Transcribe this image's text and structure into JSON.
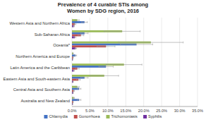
{
  "chart_data": {
    "type": "bar",
    "orientation": "horizontal",
    "title": "Prevalence of 4 curable STIs among\nWomen by SDG region, 2016",
    "categories": [
      "Western Asia and Northern Africa",
      "Sub-Saharan Africa",
      "Oceania*",
      "Northern America and Europe",
      "Latin America and the Caribbean",
      "Eastern Asia and South-eastern Asia",
      "Central Asia and Southern Asia",
      "Australia and New Zealand"
    ],
    "series": [
      {
        "name": "Chlamydia",
        "color": "#4472C4",
        "values": [
          3.5,
          3.5,
          18.0,
          1.0,
          9.5,
          3.5,
          2.0,
          2.0
        ],
        "errors": [
          0.8,
          1.0,
          4.5,
          0.3,
          2.0,
          1.0,
          0.5,
          0.5
        ]
      },
      {
        "name": "Gonorrhoea",
        "color": "#C0504D",
        "values": [
          0.8,
          2.5,
          9.5,
          0.3,
          1.5,
          1.8,
          0.5,
          0.3
        ],
        "errors": [
          0.3,
          0.8,
          2.5,
          0.1,
          0.5,
          0.5,
          0.2,
          0.1
        ]
      },
      {
        "name": "Trichomoniasis",
        "color": "#9BBB59",
        "values": [
          1.5,
          14.0,
          22.0,
          0.3,
          14.5,
          9.0,
          1.5,
          0.5
        ],
        "errors": [
          0.5,
          5.0,
          9.0,
          0.1,
          5.0,
          4.0,
          0.5,
          0.2
        ]
      },
      {
        "name": "Syphilis",
        "color": "#7030A0",
        "values": [
          0.5,
          0.8,
          1.0,
          0.2,
          0.5,
          0.3,
          0.3,
          0.2
        ],
        "errors": [
          0.2,
          0.3,
          0.3,
          0.05,
          0.2,
          0.1,
          0.1,
          0.05
        ]
      }
    ],
    "xlim": [
      0,
      35
    ],
    "xticks": [
      {
        "value": 0,
        "label": "0.0%"
      },
      {
        "value": 5,
        "label": "5.0%"
      },
      {
        "value": 10,
        "label": "10.0%"
      },
      {
        "value": 15,
        "label": "15.0%"
      },
      {
        "value": 20,
        "label": "20.0%"
      },
      {
        "value": 25,
        "label": "25.0%"
      },
      {
        "value": 30,
        "label": "30.0%"
      },
      {
        "value": 35,
        "label": "35.0%"
      }
    ],
    "grid": true,
    "legend": "bottom"
  }
}
